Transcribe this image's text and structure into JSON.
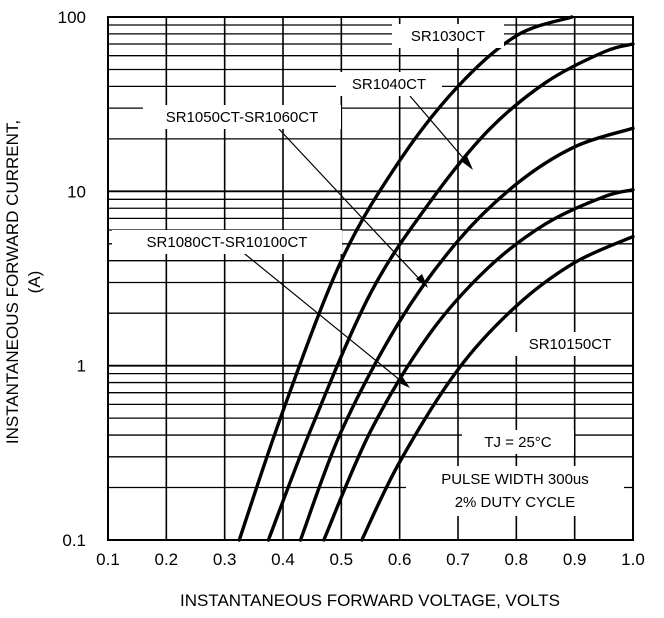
{
  "chart_data": {
    "type": "line",
    "xlabel": "INSTANTANEOUS FORWARD VOLTAGE, VOLTS",
    "ylabel": [
      "INSTANTANEOUS FORWARD CURRENT,",
      "(A)"
    ],
    "xlim": [
      0.1,
      1.0
    ],
    "ylim": [
      0.1,
      100
    ],
    "yscale": "log",
    "grid": true,
    "x_ticks": [
      "0.1",
      "0.2",
      "0.3",
      "0.4",
      "0.5",
      "0.6",
      "0.7",
      "0.8",
      "0.9",
      "1.0"
    ],
    "y_ticks": [
      {
        "label": "100",
        "value": 100
      },
      {
        "label": "10",
        "value": 10
      },
      {
        "label": "1",
        "value": 1
      },
      {
        "label": "0.1",
        "value": 0.1
      }
    ],
    "series": [
      {
        "name": "SR1030CT",
        "points": [
          [
            0.325,
            0.1
          ],
          [
            0.4,
            0.55
          ],
          [
            0.5,
            4.0
          ],
          [
            0.6,
            15
          ],
          [
            0.7,
            40
          ],
          [
            0.8,
            78
          ],
          [
            0.895,
            100
          ]
        ]
      },
      {
        "name": "SR1040CT",
        "points": [
          [
            0.375,
            0.1
          ],
          [
            0.45,
            0.45
          ],
          [
            0.55,
            2.6
          ],
          [
            0.65,
            8.5
          ],
          [
            0.75,
            22
          ],
          [
            0.85,
            42
          ],
          [
            0.95,
            63
          ],
          [
            1.0,
            70
          ]
        ]
      },
      {
        "name": "SR1050CT-SR1060CT",
        "points": [
          [
            0.43,
            0.1
          ],
          [
            0.5,
            0.42
          ],
          [
            0.6,
            1.8
          ],
          [
            0.7,
            5.2
          ],
          [
            0.8,
            11
          ],
          [
            0.9,
            18
          ],
          [
            1.0,
            23
          ]
        ]
      },
      {
        "name": "SR1080CT-SR10100CT",
        "points": [
          [
            0.47,
            0.1
          ],
          [
            0.55,
            0.42
          ],
          [
            0.65,
            1.5
          ],
          [
            0.75,
            3.6
          ],
          [
            0.85,
            6.5
          ],
          [
            0.95,
            9.3
          ],
          [
            1.0,
            10.2
          ]
        ]
      },
      {
        "name": "SR10150CT",
        "points": [
          [
            0.535,
            0.1
          ],
          [
            0.6,
            0.28
          ],
          [
            0.7,
            0.95
          ],
          [
            0.8,
            2.2
          ],
          [
            0.9,
            3.9
          ],
          [
            1.0,
            5.5
          ]
        ]
      }
    ],
    "annotations": {
      "series_labels": [
        "SR1030CT",
        "SR1040CT",
        "SR1050CT-SR1060CT",
        "SR1080CT-SR10100CT",
        "SR10150CT"
      ],
      "tj_label": "TJ = 25°C",
      "pulse_line1": "PULSE WIDTH 300us",
      "pulse_line2": "2% DUTY CYCLE"
    }
  }
}
